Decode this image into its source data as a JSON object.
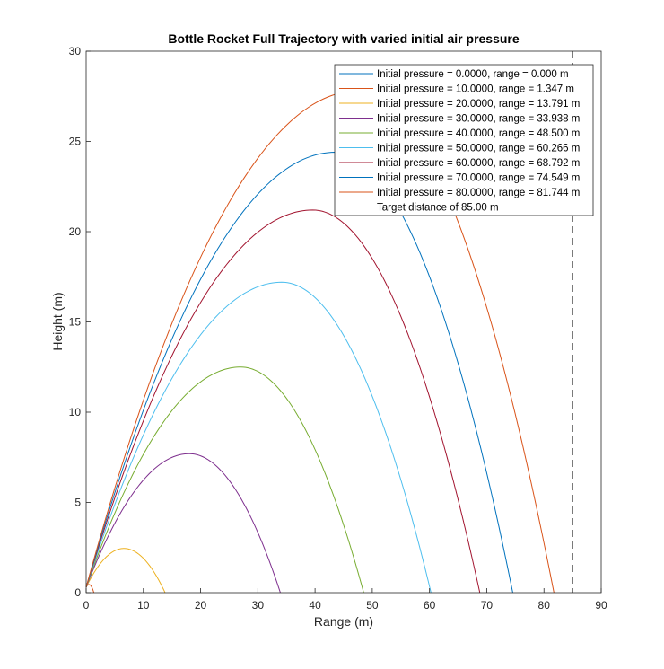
{
  "chart_data": {
    "type": "line",
    "title": "Bottle Rocket Full Trajectory with varied initial air pressure",
    "xlabel": "Range (m)",
    "ylabel": "Height (m)",
    "xlim": [
      0,
      90
    ],
    "ylim": [
      0,
      30
    ],
    "xticks": [
      0,
      10,
      20,
      30,
      40,
      50,
      60,
      70,
      80,
      90
    ],
    "yticks": [
      0,
      5,
      10,
      15,
      20,
      25,
      30
    ],
    "grid": false,
    "legend_position": "top-right",
    "launch_height": 0.3,
    "series": [
      {
        "name": "Initial pressure = 0.0000, range = 0.000 m",
        "color": "#0072BD",
        "range": 0.0,
        "apex_x": 0.0,
        "apex_y": 0.3
      },
      {
        "name": "Initial pressure = 10.0000, range = 1.347 m",
        "color": "#D95319",
        "range": 1.347,
        "apex_x": 0.5,
        "apex_y": 0.45
      },
      {
        "name": "Initial pressure = 20.0000, range = 13.791 m",
        "color": "#EDB120",
        "range": 13.791,
        "apex_x": 6.6,
        "apex_y": 2.45
      },
      {
        "name": "Initial pressure = 30.0000, range = 33.938 m",
        "color": "#7E2F8E",
        "range": 33.938,
        "apex_x": 18.0,
        "apex_y": 7.7
      },
      {
        "name": "Initial pressure = 40.0000, range = 48.500 m",
        "color": "#77AC30",
        "range": 48.5,
        "apex_x": 27.0,
        "apex_y": 12.5
      },
      {
        "name": "Initial pressure = 50.0000, range = 60.266 m",
        "color": "#4DBEEE",
        "range": 60.266,
        "apex_x": 34.2,
        "apex_y": 17.2
      },
      {
        "name": "Initial pressure = 60.0000, range = 68.792 m",
        "color": "#A2142F",
        "range": 68.792,
        "apex_x": 39.6,
        "apex_y": 21.2
      },
      {
        "name": "Initial pressure = 70.0000, range = 74.549 m",
        "color": "#0072BD",
        "range": 74.549,
        "apex_x": 43.5,
        "apex_y": 24.4
      },
      {
        "name": "Initial pressure = 80.0000, range = 81.744 m",
        "color": "#D95319",
        "range": 81.744,
        "apex_x": 47.5,
        "apex_y": 27.8
      }
    ],
    "target": {
      "name": "Target distance of 85.00 m",
      "x": 85.0,
      "color": "#262626",
      "style": "dashed"
    }
  }
}
